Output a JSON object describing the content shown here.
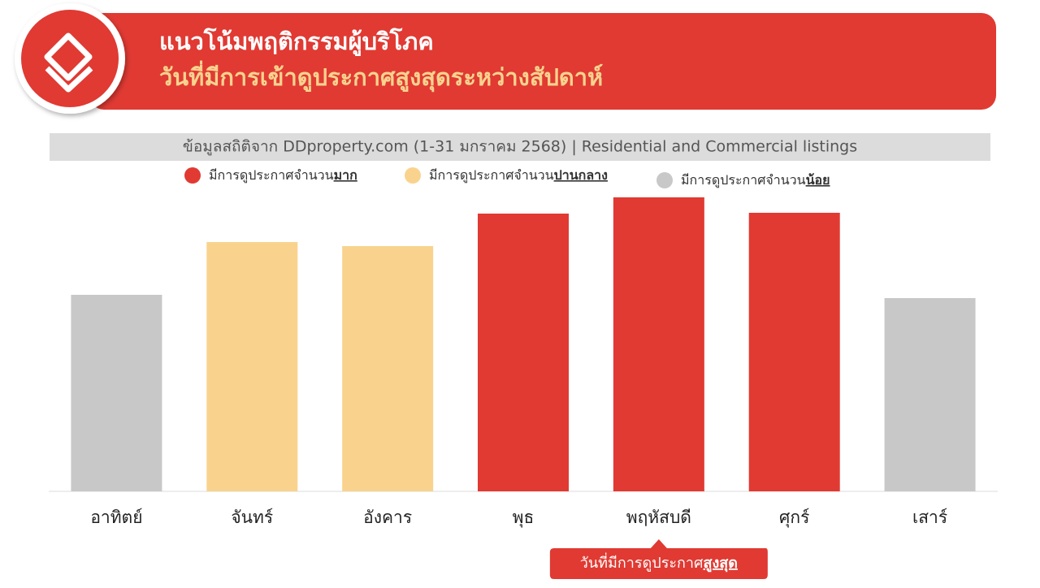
{
  "header": {
    "title": "แนวโน้มพฤติกรรมผู้บริโภค",
    "subtitle": "วันที่มีการเข้าดูประกาศสูงสุดระหว่างสัปดาห์"
  },
  "chart_data": {
    "type": "bar",
    "source": "ข้อมูลสถิติจาก DDproperty.com (1-31 มกราคม 2568) | Residential and Commercial listings",
    "legend": [
      {
        "text": "มีการดูประกาศจำนวน",
        "emphasis": "มาก",
        "color": "#e03a33"
      },
      {
        "text": "มีการดูประกาศจำนวน",
        "emphasis": "ปานกลาง",
        "color": "#f9d38e"
      },
      {
        "text": "มีการดูประกาศจำนวน",
        "emphasis": "น้อย",
        "color": "#c8c8c8"
      }
    ],
    "categories": [
      "อาทิตย์",
      "จันทร์",
      "อังคาร",
      "พุธ",
      "พฤหัสบดี",
      "ศุกร์",
      "เสาร์"
    ],
    "values": [
      242,
      307,
      302,
      342,
      362,
      343,
      238
    ],
    "colors": [
      "#c8c8c8",
      "#f9d38e",
      "#f9d38e",
      "#e03a33",
      "#e03a33",
      "#e03a33",
      "#c8c8c8"
    ],
    "ylim": [
      0,
      400
    ],
    "callout": {
      "text": "วันที่มีการดูประกาศ",
      "emphasis": "สูงสุด",
      "category": 4
    }
  }
}
